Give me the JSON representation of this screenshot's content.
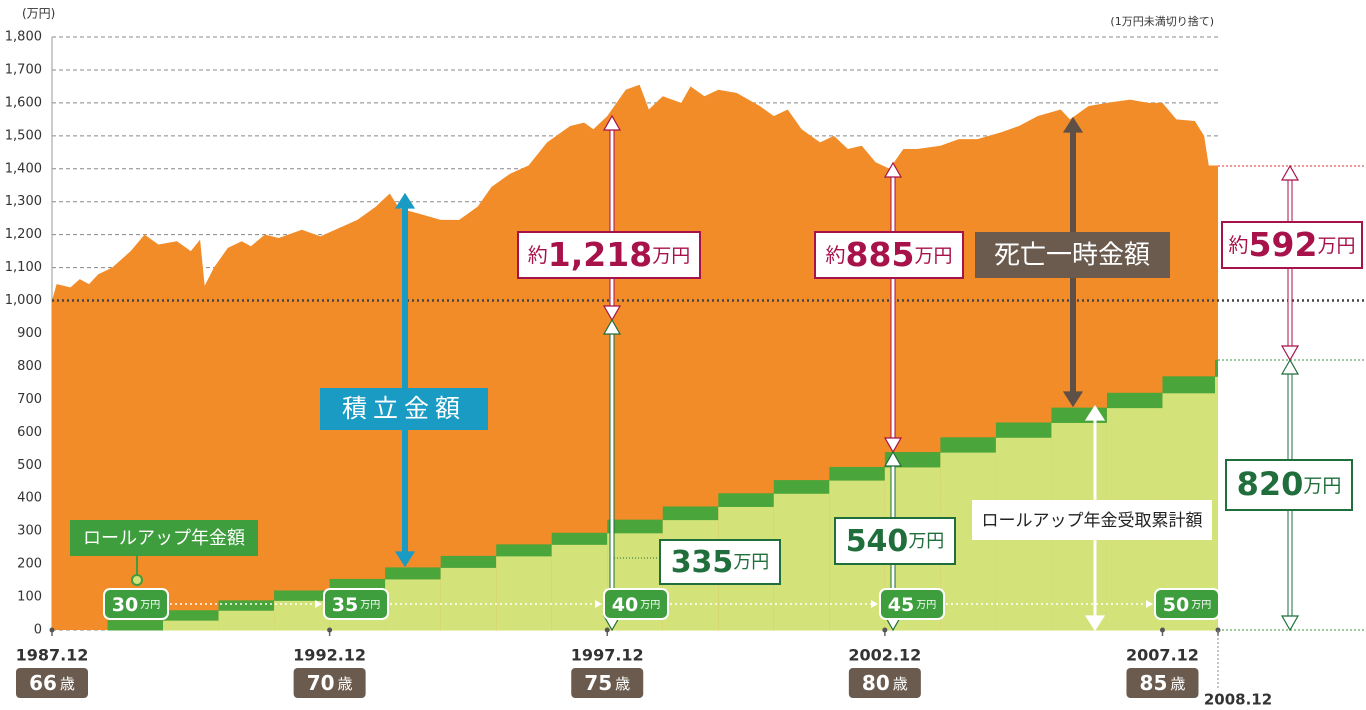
{
  "chart_data": {
    "type": "area",
    "y_unit": "(万円)",
    "note": "(1万円未満切り捨て)",
    "ylim": [
      0,
      1800
    ],
    "yticks": [
      0,
      100,
      200,
      300,
      400,
      500,
      600,
      700,
      800,
      900,
      {
        "value": 1000,
        "label": "1,000"
      },
      {
        "value": 1100,
        "label": "1,100"
      },
      {
        "value": 1200,
        "label": "1,200"
      },
      {
        "value": 1300,
        "label": "1,300"
      },
      {
        "value": 1400,
        "label": "1,400"
      },
      {
        "value": 1500,
        "label": "1,500"
      },
      {
        "value": 1600,
        "label": "1,600"
      },
      {
        "value": 1700,
        "label": "1,700"
      },
      {
        "value": 1800,
        "label": "1,800"
      }
    ],
    "grid": true,
    "xlim": [
      "1987.12",
      "2008.12"
    ],
    "xticks": [
      "1987.12",
      "1992.12",
      "1997.12",
      "2002.12",
      "2007.12",
      "2008.12"
    ],
    "age_labels": [
      "66",
      "70",
      "75",
      "80",
      "85"
    ],
    "age_unit": "歳",
    "series": [
      {
        "name": "積立金額",
        "color": "#f28c28",
        "x": [
          "1987.12",
          "1988.01",
          "1988.04",
          "1988.06",
          "1988.08",
          "1988.10",
          "1989.01",
          "1989.05",
          "1989.08",
          "1989.11",
          "1990.03",
          "1990.06",
          "1990.08",
          "1990.09",
          "1990.11",
          "1991.02",
          "1991.05",
          "1991.07",
          "1991.10",
          "1992.01",
          "1992.06",
          "1992.10",
          "1993.02",
          "1993.06",
          "1993.10",
          "1994.01",
          "1994.03",
          "1994.07",
          "1994.12",
          "1995.04",
          "1995.08",
          "1995.11",
          "1996.03",
          "1996.07",
          "1996.11",
          "1997.04",
          "1997.07",
          "1997.09",
          "1997.12",
          "1998.04",
          "1998.07",
          "1998.09",
          "1998.12",
          "1999.04",
          "1999.06",
          "1999.09",
          "1999.12",
          "2000.04",
          "2000.09",
          "2000.12",
          "2001.03",
          "2001.06",
          "2001.10",
          "2002.01",
          "2002.04",
          "2002.07",
          "2002.10",
          "2003.01",
          "2003.04",
          "2003.07",
          "2003.12",
          "2004.04",
          "2004.08",
          "2005.01",
          "2005.05",
          "2005.09",
          "2006.02",
          "2006.04",
          "2006.08",
          "2006.12",
          "2007.05",
          "2007.09",
          "2007.12",
          "2008.03",
          "2008.07",
          "2008.09",
          "2008.10",
          "2008.12"
        ],
        "values": [
          1000,
          1050,
          1040,
          1065,
          1050,
          1080,
          1100,
          1150,
          1200,
          1170,
          1180,
          1150,
          1185,
          1045,
          1100,
          1160,
          1180,
          1165,
          1200,
          1190,
          1215,
          1195,
          1220,
          1245,
          1285,
          1325,
          1280,
          1265,
          1245,
          1245,
          1285,
          1345,
          1385,
          1410,
          1480,
          1530,
          1540,
          1520,
          1560,
          1640,
          1655,
          1580,
          1620,
          1600,
          1650,
          1620,
          1640,
          1630,
          1590,
          1560,
          1580,
          1520,
          1480,
          1500,
          1460,
          1470,
          1420,
          1400,
          1460,
          1460,
          1470,
          1490,
          1490,
          1510,
          1530,
          1560,
          1580,
          1550,
          1590,
          1600,
          1610,
          1600,
          1600,
          1550,
          1545,
          1500,
          1410,
          1410
        ]
      },
      {
        "name": "ロールアップ年金受取累計額",
        "type": "step",
        "color": "#d4e27a",
        "accent_color": "#4aa53a",
        "x": [
          "1988.12",
          "1989.12",
          "1990.12",
          "1991.12",
          "1992.12",
          "1993.12",
          "1994.12",
          "1995.12",
          "1996.12",
          "1997.12",
          "1998.12",
          "1999.12",
          "2000.12",
          "2001.12",
          "2002.12",
          "2003.12",
          "2004.12",
          "2005.12",
          "2006.12",
          "2007.12",
          "2008.12"
        ],
        "values": [
          30,
          30,
          30,
          30,
          35,
          35,
          35,
          35,
          35,
          40,
          40,
          40,
          40,
          40,
          45,
          45,
          45,
          45,
          45,
          50,
          50
        ]
      }
    ],
    "reference_line": 1000,
    "annual_label": "ロールアップ年金額",
    "rate_labels": [
      "30",
      "35",
      "40",
      "45",
      "50"
    ],
    "unit": "万円",
    "death_benefit_label": "死亡一時金額",
    "callouts": [
      {
        "prefix": "約",
        "number": "1,218"
      },
      {
        "prefix": "約",
        "number": "885"
      },
      {
        "prefix": "約",
        "number": "592"
      },
      {
        "number": "335"
      },
      {
        "number": "540"
      },
      {
        "number": "820"
      }
    ]
  }
}
